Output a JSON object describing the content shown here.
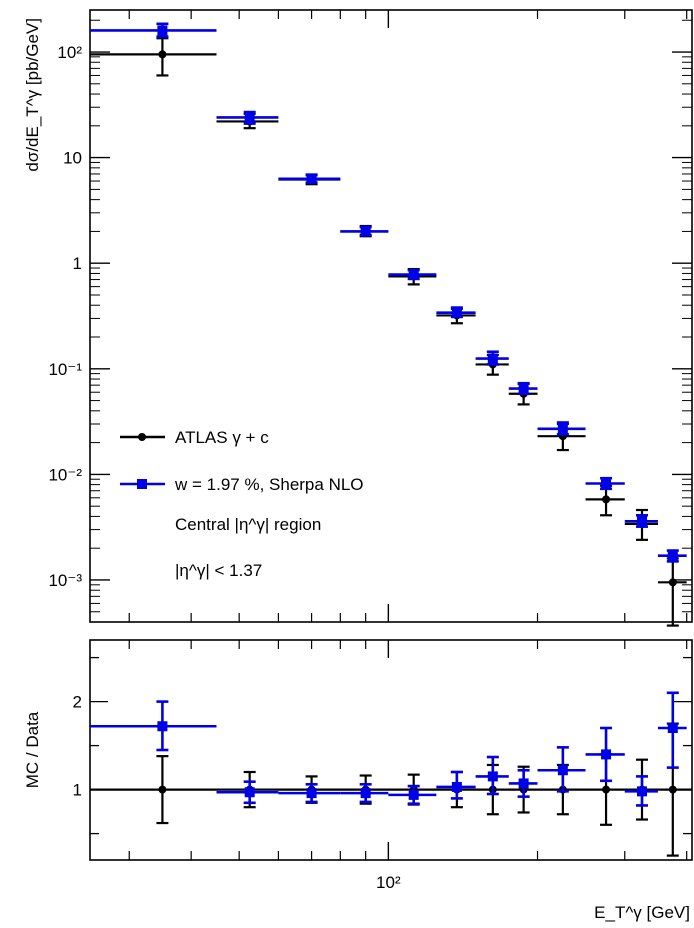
{
  "chart_data": [
    {
      "type": "scatter",
      "panel": "main",
      "ylabel": "dσ/dE_T^γ [pb/GeV]",
      "yscale": "log",
      "xscale": "log",
      "ylim": [
        0.0004,
        250
      ],
      "y_tick_labels": [
        "10²",
        "10",
        "1",
        "10⁻¹",
        "10⁻²",
        "10⁻³"
      ],
      "series": [
        {
          "name": "ATLAS γ + c",
          "color": "#000000",
          "marker": "circle",
          "points": [
            {
              "x": 35,
              "y": 95,
              "xlo": 25,
              "xhi": 45,
              "ylo": 60,
              "yhi": 135
            },
            {
              "x": 52.5,
              "y": 22,
              "xlo": 45,
              "xhi": 60,
              "ylo": 19,
              "yhi": 26
            },
            {
              "x": 70,
              "y": 6.2,
              "xlo": 60,
              "xhi": 80,
              "ylo": 5.6,
              "yhi": 6.8
            },
            {
              "x": 90,
              "y": 2.0,
              "xlo": 80,
              "xhi": 100,
              "ylo": 1.8,
              "yhi": 2.25
            },
            {
              "x": 112.5,
              "y": 0.75,
              "xlo": 100,
              "xhi": 125,
              "ylo": 0.63,
              "yhi": 0.88
            },
            {
              "x": 137.5,
              "y": 0.32,
              "xlo": 125,
              "xhi": 150,
              "ylo": 0.27,
              "yhi": 0.37
            },
            {
              "x": 162.5,
              "y": 0.11,
              "xlo": 150,
              "xhi": 175,
              "ylo": 0.088,
              "yhi": 0.135
            },
            {
              "x": 187.5,
              "y": 0.058,
              "xlo": 175,
              "xhi": 200,
              "ylo": 0.046,
              "yhi": 0.072
            },
            {
              "x": 225,
              "y": 0.023,
              "xlo": 200,
              "xhi": 250,
              "ylo": 0.017,
              "yhi": 0.03
            },
            {
              "x": 275,
              "y": 0.0058,
              "xlo": 250,
              "xhi": 300,
              "ylo": 0.0041,
              "yhi": 0.0078
            },
            {
              "x": 325,
              "y": 0.0034,
              "xlo": 300,
              "xhi": 350,
              "ylo": 0.0024,
              "yhi": 0.0046
            },
            {
              "x": 375,
              "y": 0.00095,
              "xlo": 350,
              "xhi": 400,
              "ylo": 0.00037,
              "yhi": 0.0016
            }
          ]
        },
        {
          "name": "w = 1.97 %, Sherpa NLO",
          "color": "#0000e6",
          "marker": "square",
          "points": [
            {
              "x": 35,
              "y": 160,
              "xlo": 25,
              "xhi": 45,
              "ylo": 140,
              "yhi": 185
            },
            {
              "x": 52.5,
              "y": 24,
              "xlo": 45,
              "xhi": 60,
              "ylo": 21,
              "yhi": 27
            },
            {
              "x": 70,
              "y": 6.3,
              "xlo": 60,
              "xhi": 80,
              "ylo": 5.8,
              "yhi": 6.9
            },
            {
              "x": 90,
              "y": 2.0,
              "xlo": 80,
              "xhi": 100,
              "ylo": 1.85,
              "yhi": 2.2
            },
            {
              "x": 112.5,
              "y": 0.78,
              "xlo": 100,
              "xhi": 125,
              "ylo": 0.71,
              "yhi": 0.86
            },
            {
              "x": 137.5,
              "y": 0.34,
              "xlo": 125,
              "xhi": 150,
              "ylo": 0.31,
              "yhi": 0.38
            },
            {
              "x": 162.5,
              "y": 0.125,
              "xlo": 150,
              "xhi": 175,
              "ylo": 0.11,
              "yhi": 0.145
            },
            {
              "x": 187.5,
              "y": 0.065,
              "xlo": 175,
              "xhi": 200,
              "ylo": 0.058,
              "yhi": 0.073
            },
            {
              "x": 225,
              "y": 0.027,
              "xlo": 200,
              "xhi": 250,
              "ylo": 0.024,
              "yhi": 0.031
            },
            {
              "x": 275,
              "y": 0.0082,
              "xlo": 250,
              "xhi": 300,
              "ylo": 0.0073,
              "yhi": 0.0092
            },
            {
              "x": 325,
              "y": 0.0036,
              "xlo": 300,
              "xhi": 350,
              "ylo": 0.0032,
              "yhi": 0.0041
            },
            {
              "x": 375,
              "y": 0.0017,
              "xlo": 350,
              "xhi": 400,
              "ylo": 0.0015,
              "yhi": 0.0019
            }
          ]
        }
      ],
      "legend": {
        "position": "bottom-left",
        "annotations": [
          "Central |η^γ| region",
          "|η^γ| < 1.37"
        ]
      }
    },
    {
      "type": "scatter",
      "panel": "ratio",
      "ylabel": "MC / Data",
      "xlabel": "E_T^γ [GeV]",
      "xscale": "log",
      "xlim": [
        25,
        410
      ],
      "ylim": [
        0.2,
        2.7
      ],
      "reference_line": 1,
      "y_tick_labels": [
        "2",
        "1"
      ],
      "x_tick_labels": [
        "10²"
      ],
      "series": [
        {
          "name": "ATLAS γ + c",
          "color": "#000000",
          "marker": "circle",
          "points": [
            {
              "x": 35,
              "y": 1.0,
              "ylo": 0.62,
              "yhi": 1.38
            },
            {
              "x": 52.5,
              "y": 1.0,
              "ylo": 0.8,
              "yhi": 1.2
            },
            {
              "x": 70,
              "y": 1.0,
              "ylo": 0.85,
              "yhi": 1.15
            },
            {
              "x": 90,
              "y": 1.0,
              "ylo": 0.84,
              "yhi": 1.16
            },
            {
              "x": 112.5,
              "y": 1.0,
              "ylo": 0.83,
              "yhi": 1.17
            },
            {
              "x": 137.5,
              "y": 1.0,
              "ylo": 0.8,
              "yhi": 1.2
            },
            {
              "x": 162.5,
              "y": 1.0,
              "ylo": 0.72,
              "yhi": 1.28
            },
            {
              "x": 187.5,
              "y": 1.0,
              "ylo": 0.74,
              "yhi": 1.26
            },
            {
              "x": 225,
              "y": 1.0,
              "ylo": 0.72,
              "yhi": 1.28
            },
            {
              "x": 275,
              "y": 1.0,
              "ylo": 0.6,
              "yhi": 1.4
            },
            {
              "x": 325,
              "y": 1.0,
              "ylo": 0.66,
              "yhi": 1.34
            },
            {
              "x": 375,
              "y": 1.0,
              "ylo": 0.25,
              "yhi": 1.75
            }
          ]
        },
        {
          "name": "w = 1.97 %, Sherpa NLO",
          "color": "#0000e6",
          "marker": "square",
          "points": [
            {
              "x": 35,
              "y": 1.72,
              "xlo": 25,
              "xhi": 45,
              "ylo": 1.45,
              "yhi": 2.0
            },
            {
              "x": 52.5,
              "y": 0.97,
              "xlo": 45,
              "xhi": 60,
              "ylo": 0.85,
              "yhi": 1.09
            },
            {
              "x": 70,
              "y": 0.96,
              "xlo": 60,
              "xhi": 80,
              "ylo": 0.86,
              "yhi": 1.06
            },
            {
              "x": 90,
              "y": 0.96,
              "xlo": 80,
              "xhi": 100,
              "ylo": 0.86,
              "yhi": 1.06
            },
            {
              "x": 112.5,
              "y": 0.94,
              "xlo": 100,
              "xhi": 125,
              "ylo": 0.84,
              "yhi": 1.04
            },
            {
              "x": 137.5,
              "y": 1.03,
              "xlo": 125,
              "xhi": 150,
              "ylo": 0.9,
              "yhi": 1.2
            },
            {
              "x": 162.5,
              "y": 1.15,
              "xlo": 150,
              "xhi": 175,
              "ylo": 0.95,
              "yhi": 1.37
            },
            {
              "x": 187.5,
              "y": 1.07,
              "xlo": 175,
              "xhi": 200,
              "ylo": 0.92,
              "yhi": 1.22
            },
            {
              "x": 225,
              "y": 1.22,
              "xlo": 200,
              "xhi": 250,
              "ylo": 0.98,
              "yhi": 1.48
            },
            {
              "x": 275,
              "y": 1.4,
              "xlo": 250,
              "xhi": 300,
              "ylo": 1.1,
              "yhi": 1.7
            },
            {
              "x": 325,
              "y": 0.98,
              "xlo": 300,
              "xhi": 350,
              "ylo": 0.82,
              "yhi": 1.15
            },
            {
              "x": 375,
              "y": 1.7,
              "xlo": 350,
              "xhi": 400,
              "ylo": 1.25,
              "yhi": 2.1
            }
          ]
        }
      ]
    }
  ]
}
